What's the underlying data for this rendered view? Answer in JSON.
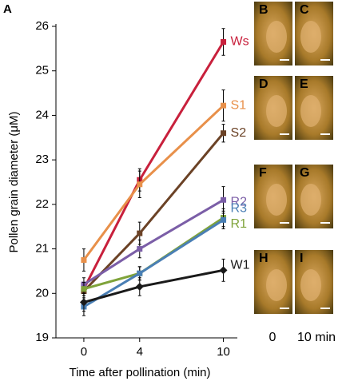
{
  "chart_data": {
    "type": "line",
    "panel_label": "A",
    "x_label": "Time after pollination (min)",
    "y_label": "Pollen grain diameter (μM)",
    "x": [
      0,
      4,
      10
    ],
    "xlim": [
      -2,
      11
    ],
    "xticks": [
      0,
      4,
      10
    ],
    "ylim": [
      19,
      26
    ],
    "yticks": [
      19,
      20,
      21,
      22,
      23,
      24,
      25,
      26
    ],
    "series": [
      {
        "name": "Ws",
        "color": "#c8203c",
        "values": [
          20.1,
          22.55,
          25.65
        ],
        "errors": [
          0.15,
          0.25,
          0.3
        ]
      },
      {
        "name": "S1",
        "color": "#e8904a",
        "values": [
          20.75,
          22.45,
          24.22
        ],
        "errors": [
          0.25,
          0.3,
          0.35
        ]
      },
      {
        "name": "S2",
        "color": "#6b4226",
        "values": [
          20.05,
          21.35,
          23.6
        ],
        "errors": [
          0.2,
          0.25,
          0.2
        ]
      },
      {
        "name": "R2",
        "color": "#7b5ea7",
        "values": [
          20.2,
          21.0,
          22.1
        ],
        "errors": [
          0.15,
          0.2,
          0.3
        ]
      },
      {
        "name": "R1",
        "color": "#7fa33a",
        "values": [
          20.1,
          20.45,
          21.7
        ],
        "errors": [
          0.15,
          0.15,
          0.2
        ]
      },
      {
        "name": "R3",
        "color": "#4a7fb5",
        "values": [
          19.7,
          20.45,
          21.65
        ],
        "errors": [
          0.2,
          0.15,
          0.2
        ]
      },
      {
        "name": "W1",
        "color": "#1a1a1a",
        "values": [
          19.8,
          20.15,
          20.52
        ],
        "errors": [
          0.2,
          0.2,
          0.25
        ]
      }
    ]
  },
  "photos": {
    "labels": [
      "B",
      "C",
      "D",
      "E",
      "F",
      "G",
      "H",
      "I"
    ],
    "time_labels": [
      "0",
      "10 min"
    ]
  }
}
